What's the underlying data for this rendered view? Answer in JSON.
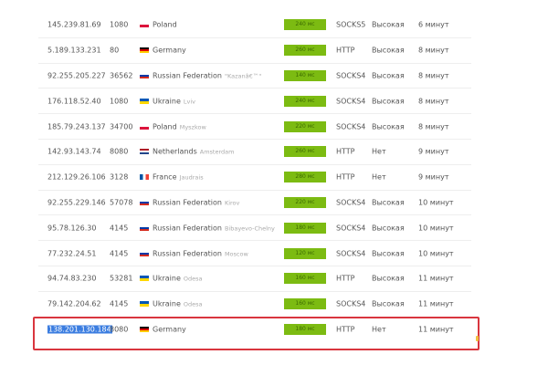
{
  "accent_color": "#7cbb12",
  "highlight_color": "#d9363e",
  "rows": [
    {
      "ip": "145.239.81.69",
      "port": "1080",
      "flag": "pl",
      "country": "Poland",
      "city": "",
      "ping": "240 мс",
      "type": "SOCKS5",
      "anonymity": "Высокая",
      "checked": "6 минут"
    },
    {
      "ip": "5.189.133.231",
      "port": "80",
      "flag": "de",
      "country": "Germany",
      "city": "",
      "ping": "260 мс",
      "type": "HTTP",
      "anonymity": "Высокая",
      "checked": "8 минут"
    },
    {
      "ip": "92.255.205.227",
      "port": "36562",
      "flag": "ru",
      "country": "Russian Federation",
      "city": "\"Kazanâ€™\"",
      "ping": "140 мс",
      "type": "SOCKS4",
      "anonymity": "Высокая",
      "checked": "8 минут"
    },
    {
      "ip": "176.118.52.40",
      "port": "1080",
      "flag": "ua",
      "country": "Ukraine",
      "city": "Lviv",
      "ping": "240 мс",
      "type": "SOCKS4",
      "anonymity": "Высокая",
      "checked": "8 минут"
    },
    {
      "ip": "185.79.243.137",
      "port": "34700",
      "flag": "pl",
      "country": "Poland",
      "city": "Myszkow",
      "ping": "220 мс",
      "type": "SOCKS4",
      "anonymity": "Высокая",
      "checked": "8 минут"
    },
    {
      "ip": "142.93.143.74",
      "port": "8080",
      "flag": "nl",
      "country": "Netherlands",
      "city": "Amsterdam",
      "ping": "260 мс",
      "type": "HTTP",
      "anonymity": "Нет",
      "checked": "9 минут"
    },
    {
      "ip": "212.129.26.106",
      "port": "3128",
      "flag": "fr",
      "country": "France",
      "city": "Jaudrais",
      "ping": "280 мс",
      "type": "HTTP",
      "anonymity": "Нет",
      "checked": "9 минут"
    },
    {
      "ip": "92.255.229.146",
      "port": "57078",
      "flag": "ru",
      "country": "Russian Federation",
      "city": "Kirov",
      "ping": "220 мс",
      "type": "SOCKS4",
      "anonymity": "Высокая",
      "checked": "10 минут"
    },
    {
      "ip": "95.78.126.30",
      "port": "4145",
      "flag": "ru",
      "country": "Russian Federation",
      "city": "Bibayevo-Chelny",
      "ping": "180 мс",
      "type": "SOCKS4",
      "anonymity": "Высокая",
      "checked": "10 минут"
    },
    {
      "ip": "77.232.24.51",
      "port": "4145",
      "flag": "ru",
      "country": "Russian Federation",
      "city": "Moscow",
      "ping": "120 мс",
      "type": "SOCKS4",
      "anonymity": "Высокая",
      "checked": "10 минут"
    },
    {
      "ip": "94.74.83.230",
      "port": "53281",
      "flag": "ua",
      "country": "Ukraine",
      "city": "Odesa",
      "ping": "160 мс",
      "type": "HTTP",
      "anonymity": "Высокая",
      "checked": "11 минут"
    },
    {
      "ip": "79.142.204.62",
      "port": "4145",
      "flag": "ua",
      "country": "Ukraine",
      "city": "Odesa",
      "ping": "160 мс",
      "type": "SOCKS4",
      "anonymity": "Высокая",
      "checked": "11 минут"
    },
    {
      "ip": "138.201.130.184",
      "port": "8080",
      "flag": "de",
      "country": "Germany",
      "city": "",
      "ping": "180 мс",
      "type": "HTTP",
      "anonymity": "Нет",
      "checked": "11 минут",
      "selected": true
    }
  ]
}
